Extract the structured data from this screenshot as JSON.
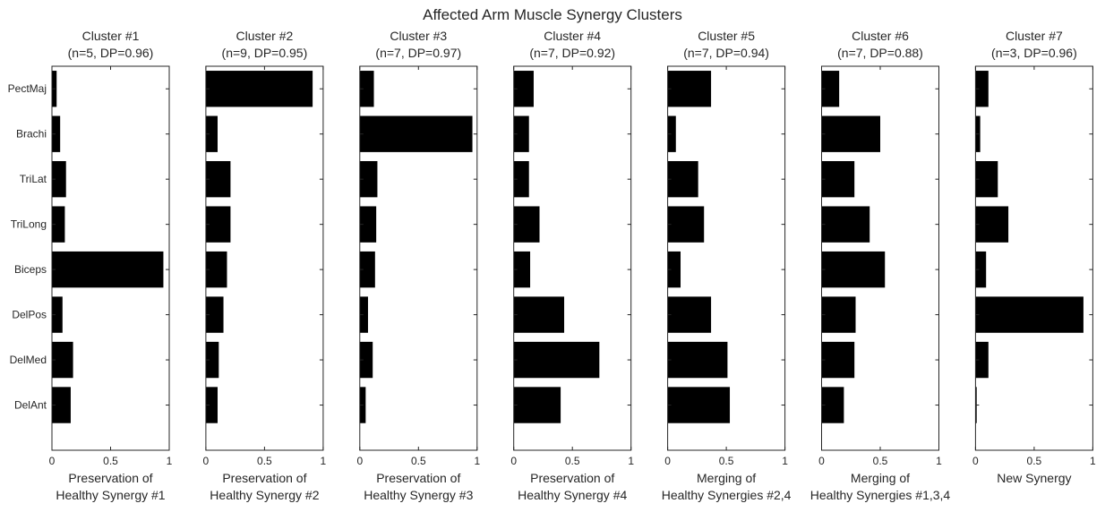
{
  "figure_title": "Affected Arm Muscle Synergy Clusters",
  "chart_data": [
    {
      "type": "bar",
      "orientation": "horizontal",
      "title_line1": "Cluster #1",
      "title_line2": "(n=5, DP=0.96)",
      "xlabel_line1": "Preservation of",
      "xlabel_line2": "Healthy Synergy #1",
      "categories": [
        "PectMaj",
        "Brachi",
        "TriLat",
        "TriLong",
        "Biceps",
        "DelPos",
        "DelMed",
        "DelAnt"
      ],
      "values": [
        0.04,
        0.07,
        0.12,
        0.11,
        0.95,
        0.09,
        0.18,
        0.16
      ],
      "xlim": [
        0,
        1
      ],
      "xticks": [
        "0",
        "0.5",
        "1"
      ],
      "show_category_labels": true,
      "color": "#000000"
    },
    {
      "type": "bar",
      "orientation": "horizontal",
      "title_line1": "Cluster #2",
      "title_line2": "(n=9, DP=0.95)",
      "xlabel_line1": "Preservation of",
      "xlabel_line2": "Healthy Synergy #2",
      "categories": [
        "PectMaj",
        "Brachi",
        "TriLat",
        "TriLong",
        "Biceps",
        "DelPos",
        "DelMed",
        "DelAnt"
      ],
      "values": [
        0.91,
        0.1,
        0.21,
        0.21,
        0.18,
        0.15,
        0.11,
        0.1
      ],
      "xlim": [
        0,
        1
      ],
      "xticks": [
        "0",
        "0.5",
        "1"
      ],
      "show_category_labels": false,
      "color": "#000000"
    },
    {
      "type": "bar",
      "orientation": "horizontal",
      "title_line1": "Cluster #3",
      "title_line2": "(n=7, DP=0.97)",
      "xlabel_line1": "Preservation of",
      "xlabel_line2": "Healthy Synergy #3",
      "categories": [
        "PectMaj",
        "Brachi",
        "TriLat",
        "TriLong",
        "Biceps",
        "DelPos",
        "DelMed",
        "DelAnt"
      ],
      "values": [
        0.12,
        0.96,
        0.15,
        0.14,
        0.13,
        0.07,
        0.11,
        0.05
      ],
      "xlim": [
        0,
        1
      ],
      "xticks": [
        "0",
        "0.5",
        "1"
      ],
      "show_category_labels": false,
      "color": "#000000"
    },
    {
      "type": "bar",
      "orientation": "horizontal",
      "title_line1": "Cluster #4",
      "title_line2": "(n=7, DP=0.92)",
      "xlabel_line1": "Preservation of",
      "xlabel_line2": "Healthy Synergy #4",
      "categories": [
        "PectMaj",
        "Brachi",
        "TriLat",
        "TriLong",
        "Biceps",
        "DelPos",
        "DelMed",
        "DelAnt"
      ],
      "values": [
        0.17,
        0.13,
        0.13,
        0.22,
        0.14,
        0.43,
        0.73,
        0.4
      ],
      "xlim": [
        0,
        1
      ],
      "xticks": [
        "0",
        "0.5",
        "1"
      ],
      "show_category_labels": false,
      "color": "#000000"
    },
    {
      "type": "bar",
      "orientation": "horizontal",
      "title_line1": "Cluster #5",
      "title_line2": "(n=7, DP=0.94)",
      "xlabel_line1": "Merging of",
      "xlabel_line2": "Healthy Synergies #2,4",
      "categories": [
        "PectMaj",
        "Brachi",
        "TriLat",
        "TriLong",
        "Biceps",
        "DelPos",
        "DelMed",
        "DelAnt"
      ],
      "values": [
        0.37,
        0.07,
        0.26,
        0.31,
        0.11,
        0.37,
        0.51,
        0.53
      ],
      "xlim": [
        0,
        1
      ],
      "xticks": [
        "0",
        "0.5",
        "1"
      ],
      "show_category_labels": false,
      "color": "#000000"
    },
    {
      "type": "bar",
      "orientation": "horizontal",
      "title_line1": "Cluster #6",
      "title_line2": "(n=7, DP=0.88)",
      "xlabel_line1": "Merging of",
      "xlabel_line2": "Healthy Synergies #1,3,4",
      "categories": [
        "PectMaj",
        "Brachi",
        "TriLat",
        "TriLong",
        "Biceps",
        "DelPos",
        "DelMed",
        "DelAnt"
      ],
      "values": [
        0.15,
        0.5,
        0.28,
        0.41,
        0.54,
        0.29,
        0.28,
        0.19
      ],
      "xlim": [
        0,
        1
      ],
      "xticks": [
        "0",
        "0.5",
        "1"
      ],
      "show_category_labels": false,
      "color": "#000000"
    },
    {
      "type": "bar",
      "orientation": "horizontal",
      "title_line1": "Cluster #7",
      "title_line2": "(n=3, DP=0.96)",
      "xlabel_line1": "New Synergy",
      "xlabel_line2": "",
      "categories": [
        "PectMaj",
        "Brachi",
        "TriLat",
        "TriLong",
        "Biceps",
        "DelPos",
        "DelMed",
        "DelAnt"
      ],
      "values": [
        0.11,
        0.04,
        0.19,
        0.28,
        0.09,
        0.92,
        0.11,
        0.01
      ],
      "xlim": [
        0,
        1
      ],
      "xticks": [
        "0",
        "0.5",
        "1"
      ],
      "show_category_labels": false,
      "color": "#000000"
    }
  ]
}
